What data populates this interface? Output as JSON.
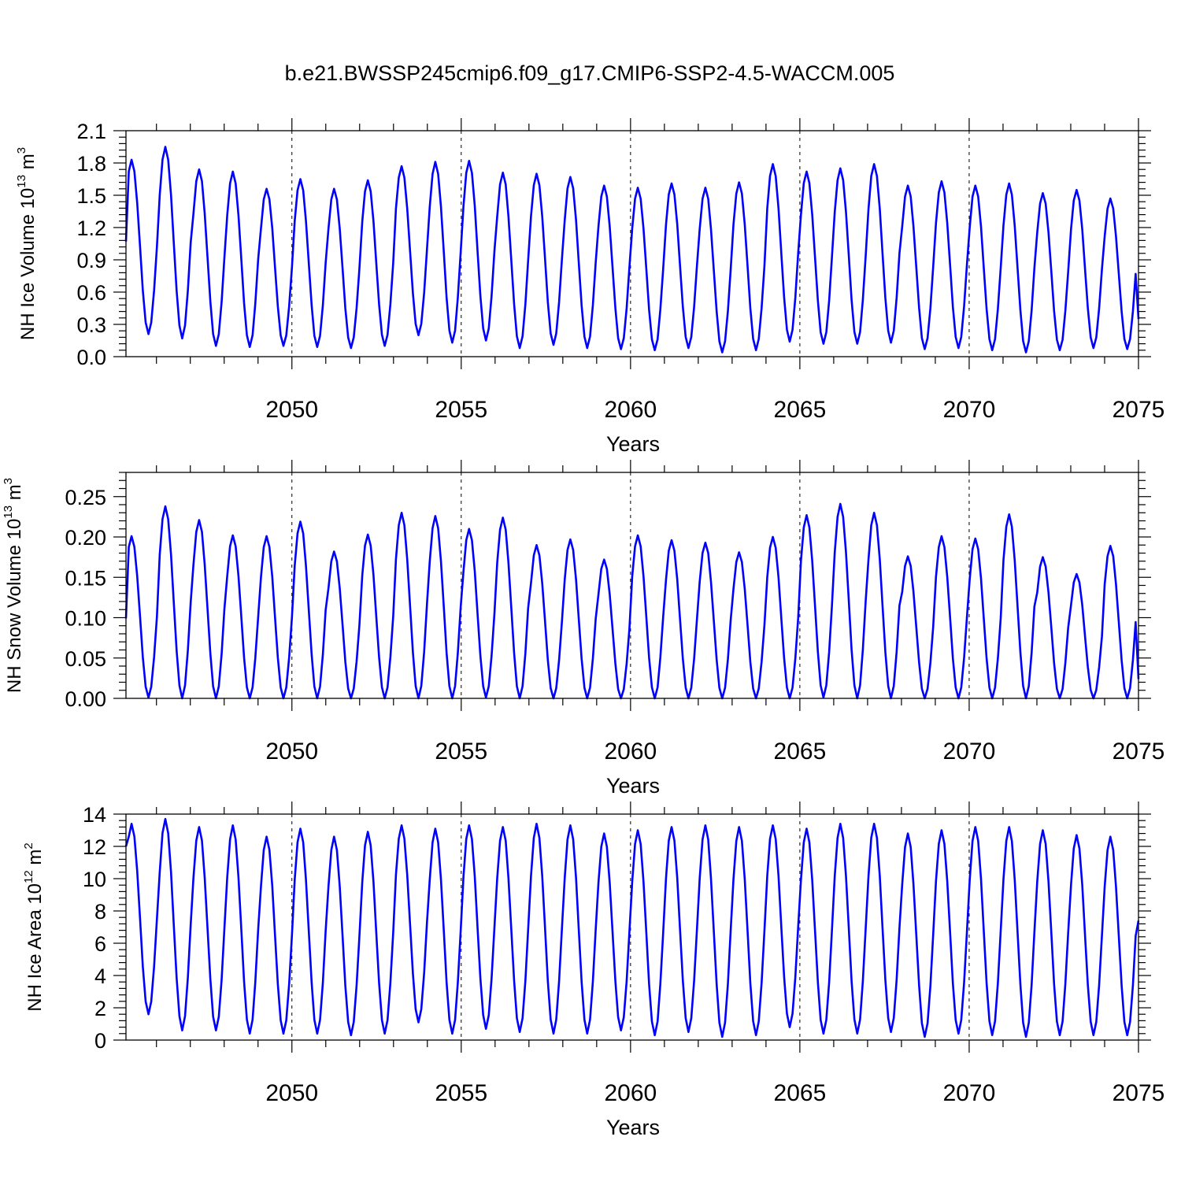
{
  "title": "b.e21.BWSSP245cmip6.f09_g17.CMIP6-SSP2-4.5-WACCM.005",
  "line_color": "#0000ff",
  "chart_data": [
    {
      "type": "line",
      "name": "ice-volume",
      "ylabel": {
        "prefix": "NH Ice Volume 10",
        "exp": "13",
        "unit": " m",
        "unit_exp": "3"
      },
      "xlabel": "Years",
      "xlim": [
        2045.1,
        2075.0
      ],
      "ylim": [
        0.0,
        2.1
      ],
      "x_ticks": [
        2050,
        2055,
        2060,
        2065,
        2070,
        2075
      ],
      "y_ticks": [
        "0.0",
        "0.3",
        "0.6",
        "0.9",
        "1.2",
        "1.5",
        "1.8",
        "2.1"
      ],
      "grid": "vertical dashed at major x ticks",
      "peaks": [
        1.83,
        1.95,
        1.74,
        1.72,
        1.56,
        1.65,
        1.56,
        1.64,
        1.77,
        1.81,
        1.82,
        1.71,
        1.7,
        1.67,
        1.59,
        1.57,
        1.61,
        1.57,
        1.62,
        1.79,
        1.72,
        1.75,
        1.79,
        1.59,
        1.63,
        1.59,
        1.61,
        1.52,
        1.55,
        1.47
      ],
      "troughs": [
        0.21,
        0.17,
        0.1,
        0.09,
        0.1,
        0.09,
        0.08,
        0.1,
        0.2,
        0.13,
        0.15,
        0.08,
        0.11,
        0.08,
        0.07,
        0.06,
        0.08,
        0.04,
        0.06,
        0.14,
        0.12,
        0.12,
        0.13,
        0.07,
        0.08,
        0.06,
        0.04,
        0.06,
        0.08,
        0.07
      ],
      "start": 1.07,
      "end": 0.35
    },
    {
      "type": "line",
      "name": "snow-volume",
      "ylabel": {
        "prefix": "NH Snow Volume 10",
        "exp": "13",
        "unit": " m",
        "unit_exp": "3"
      },
      "xlabel": "Years",
      "xlim": [
        2045.1,
        2075.0
      ],
      "ylim": [
        0.0,
        0.28
      ],
      "x_ticks": [
        2050,
        2055,
        2060,
        2065,
        2070,
        2075
      ],
      "y_ticks": [
        "0.00",
        "0.05",
        "0.10",
        "0.15",
        "0.20",
        "0.25"
      ],
      "grid": "vertical dashed at major x ticks",
      "peaks": [
        0.201,
        0.238,
        0.221,
        0.202,
        0.201,
        0.219,
        0.182,
        0.203,
        0.23,
        0.226,
        0.21,
        0.224,
        0.19,
        0.197,
        0.172,
        0.202,
        0.196,
        0.193,
        0.181,
        0.2,
        0.227,
        0.241,
        0.23,
        0.176,
        0.201,
        0.198,
        0.228,
        0.175,
        0.154,
        0.189
      ],
      "troughs": [
        0.001,
        0.0,
        0.0,
        0.0,
        0.0,
        0.0,
        0.0,
        0.0,
        0.0,
        0.0,
        0.001,
        0.0,
        0.0,
        0.0,
        0.0,
        0.0,
        0.0,
        0.0,
        0.0,
        0.0,
        0.001,
        0.0,
        0.0,
        0.0,
        0.0,
        0.0,
        0.0,
        0.0,
        0.0,
        0.0
      ],
      "start": 0.099,
      "end": 0.024
    },
    {
      "type": "line",
      "name": "ice-area",
      "ylabel": {
        "prefix": "NH Ice Area 10",
        "exp": "12",
        "unit": " m",
        "unit_exp": "2"
      },
      "xlabel": "Years",
      "xlim": [
        2045.1,
        2075.0
      ],
      "ylim": [
        0,
        14
      ],
      "x_ticks": [
        2050,
        2055,
        2060,
        2065,
        2070,
        2075
      ],
      "y_ticks": [
        "0",
        "2",
        "4",
        "6",
        "8",
        "10",
        "12",
        "14"
      ],
      "grid": "vertical dashed at major x ticks",
      "peaks": [
        13.4,
        13.7,
        13.2,
        13.3,
        12.6,
        13.1,
        12.6,
        12.9,
        13.3,
        13.1,
        13.3,
        13.2,
        13.4,
        13.3,
        12.8,
        13.0,
        13.2,
        13.3,
        13.2,
        13.3,
        13.1,
        13.4,
        13.4,
        12.8,
        13.0,
        13.2,
        13.2,
        13.0,
        12.7,
        12.6
      ],
      "troughs": [
        1.6,
        0.6,
        0.6,
        0.4,
        0.4,
        0.4,
        0.3,
        0.4,
        1.1,
        0.4,
        0.7,
        0.5,
        0.4,
        0.4,
        0.6,
        0.3,
        0.5,
        0.2,
        0.3,
        0.8,
        0.4,
        0.4,
        0.5,
        0.2,
        0.4,
        0.3,
        0.2,
        0.3,
        0.3,
        0.3
      ],
      "start": 12.0,
      "end": 7.4
    }
  ]
}
